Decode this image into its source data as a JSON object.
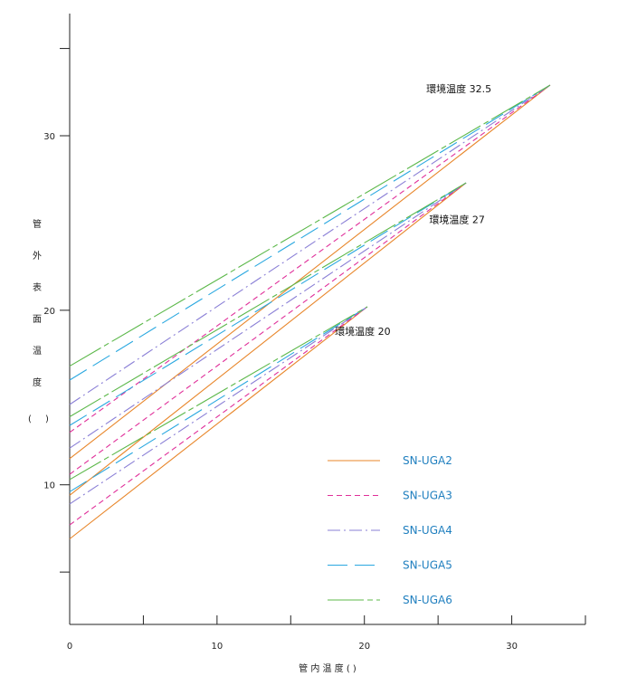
{
  "chart_data": {
    "type": "line",
    "xlabel": "管 内 温 度 ( )",
    "ylabel_chars": [
      "管",
      "外",
      "表",
      "面",
      "温",
      "度",
      "(",
      ")"
    ],
    "xlim": [
      0,
      35
    ],
    "ylim": [
      2,
      37
    ],
    "x_ticks": [
      0,
      5,
      10,
      15,
      20,
      25,
      30,
      35
    ],
    "x_tick_labels": {
      "0": "0",
      "10": "10",
      "20": "20",
      "30": "30"
    },
    "y_ticks": [
      5,
      10,
      20,
      30,
      35
    ],
    "y_tick_labels": {
      "10": "10",
      "20": "20",
      "30": "30"
    },
    "grid": false,
    "legend_position": "lower-right",
    "series": [
      {
        "name": "SN-UGA2",
        "color": "#e8862a",
        "dash": "",
        "lines": [
          {
            "x": [
              0,
              20.2
            ],
            "y": [
              6.9,
              20.2
            ]
          },
          {
            "x": [
              0,
              26.9
            ],
            "y": [
              9.4,
              27.3
            ]
          },
          {
            "x": [
              0,
              32.6
            ],
            "y": [
              11.5,
              32.9
            ]
          }
        ]
      },
      {
        "name": "SN-UGA3",
        "color": "#e0309a",
        "dash": "6,4",
        "lines": [
          {
            "x": [
              0,
              20.2
            ],
            "y": [
              7.7,
              20.2
            ]
          },
          {
            "x": [
              0,
              26.9
            ],
            "y": [
              10.6,
              27.3
            ]
          },
          {
            "x": [
              0,
              32.6
            ],
            "y": [
              13.0,
              32.9
            ]
          }
        ]
      },
      {
        "name": "SN-UGA4",
        "color": "#8a7fd6",
        "dash": "14,4,2,4",
        "lines": [
          {
            "x": [
              0,
              20.2
            ],
            "y": [
              8.9,
              20.2
            ]
          },
          {
            "x": [
              0,
              26.9
            ],
            "y": [
              12.1,
              27.3
            ]
          },
          {
            "x": [
              0,
              32.6
            ],
            "y": [
              14.6,
              32.9
            ]
          }
        ]
      },
      {
        "name": "SN-UGA5",
        "color": "#2aa8e0",
        "dash": "22,8",
        "lines": [
          {
            "x": [
              0,
              20.2
            ],
            "y": [
              9.6,
              20.2
            ]
          },
          {
            "x": [
              0,
              26.9
            ],
            "y": [
              13.4,
              27.3
            ]
          },
          {
            "x": [
              0,
              32.6
            ],
            "y": [
              16.0,
              32.9
            ]
          }
        ]
      },
      {
        "name": "SN-UGA6",
        "color": "#5cb84a",
        "dash": "40,4,6,4",
        "lines": [
          {
            "x": [
              0,
              20.2
            ],
            "y": [
              10.3,
              20.2
            ]
          },
          {
            "x": [
              0,
              26.9
            ],
            "y": [
              13.9,
              27.3
            ]
          },
          {
            "x": [
              0,
              32.6
            ],
            "y": [
              16.8,
              32.9
            ]
          }
        ]
      }
    ],
    "annotations": [
      {
        "text": "環境温度 32.5",
        "x": 24.2,
        "y": 32.5
      },
      {
        "text": "環境温度 27",
        "x": 24.4,
        "y": 25.0
      },
      {
        "text": "環境温度 20",
        "x": 18.0,
        "y": 18.6
      }
    ]
  }
}
